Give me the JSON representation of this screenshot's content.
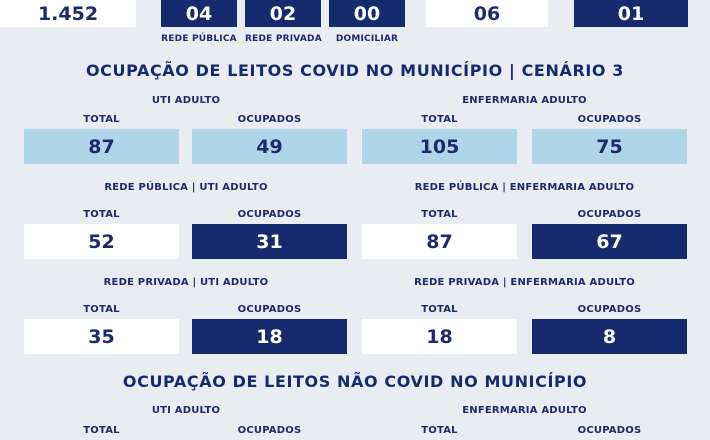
{
  "top": {
    "total_value": "1.452",
    "rede_publica": {
      "value": "04",
      "label": "REDE PÚBLICA"
    },
    "rede_privada": {
      "value": "02",
      "label": "REDE PRIVADA"
    },
    "domiciliar": {
      "value": "00",
      "label": "DOMICILIAR"
    },
    "value_06": "06",
    "value_01": "01"
  },
  "covid": {
    "title": "OCUPAÇÃO DE LEITOS COVID NO MUNICÍPIO | CENÁRIO  3",
    "uti_adulto": {
      "heading": "UTI ADULTO",
      "total_label": "TOTAL",
      "occupied_label": "OCUPADOS",
      "total": "87",
      "occupied": "49"
    },
    "enfermaria_adulto": {
      "heading": "ENFERMARIA ADULTO",
      "total_label": "TOTAL",
      "occupied_label": "OCUPADOS",
      "total": "105",
      "occupied": "75"
    },
    "publica_uti": {
      "heading": "REDE PÚBLICA | UTI ADULTO",
      "total_label": "TOTAL",
      "occupied_label": "OCUPADOS",
      "total": "52",
      "occupied": "31"
    },
    "publica_enfermaria": {
      "heading": "REDE PÚBLICA | ENFERMARIA ADULTO",
      "total_label": "TOTAL",
      "occupied_label": "OCUPADOS",
      "total": "87",
      "occupied": "67"
    },
    "privada_uti": {
      "heading": "REDE PRIVADA | UTI ADULTO",
      "total_label": "TOTAL",
      "occupied_label": "OCUPADOS",
      "total": "35",
      "occupied": "18"
    },
    "privada_enfermaria": {
      "heading": "REDE PRIVADA | ENFERMARIA ADULTO",
      "total_label": "TOTAL",
      "occupied_label": "OCUPADOS",
      "total": "18",
      "occupied": "8"
    }
  },
  "nao_covid": {
    "title": "OCUPAÇÃO DE LEITOS NÃO COVID NO MUNICÍPIO",
    "uti_adulto": {
      "heading": "UTI ADULTO",
      "total_label": "TOTAL",
      "occupied_label": "OCUPADOS"
    },
    "enfermaria_adulto": {
      "heading": "ENFERMARIA ADULTO",
      "total_label": "TOTAL",
      "occupied_label": "OCUPADOS"
    }
  },
  "colors": {
    "navy": "#152b6e",
    "light_blue": "#aed6e8",
    "white": "#ffffff",
    "background": "#e9edf1"
  }
}
